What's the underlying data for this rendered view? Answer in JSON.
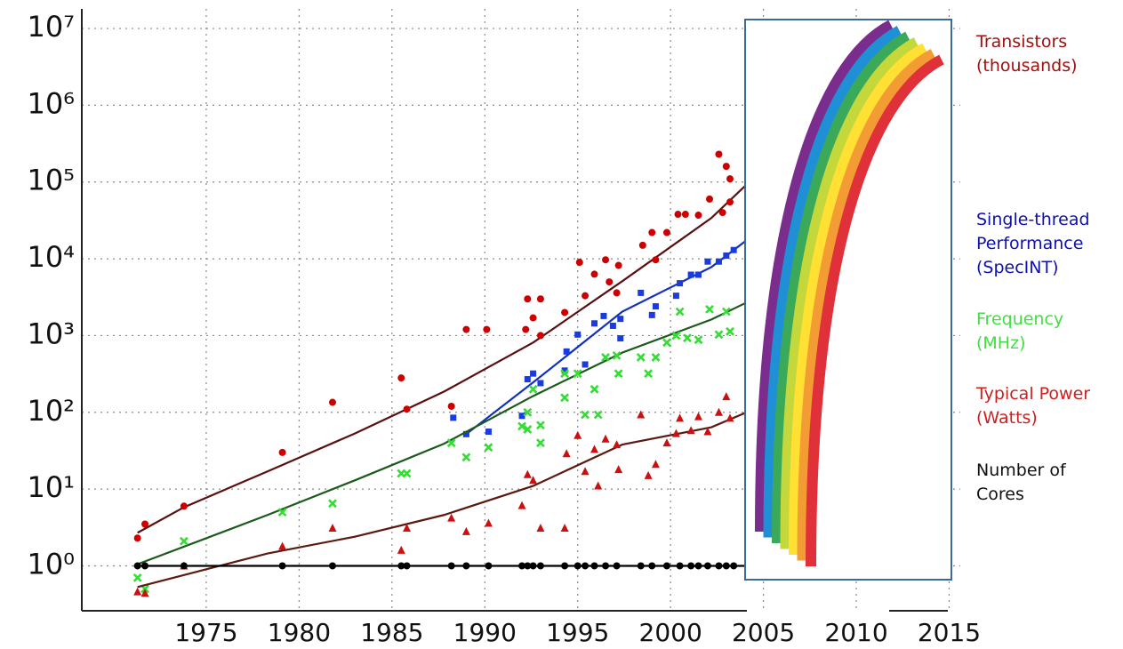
{
  "chart_data": {
    "type": "scatter",
    "ylog": true,
    "grid": true,
    "xlim": [
      1968.3,
      2015.6
    ],
    "ylim": [
      0.26,
      18000000
    ],
    "xticks": [
      1975,
      1980,
      1985,
      1990,
      1995,
      2000,
      2005,
      2010,
      2015
    ],
    "yticks": [
      {
        "value": 1,
        "label": "10⁰"
      },
      {
        "value": 10,
        "label": "10¹"
      },
      {
        "value": 100,
        "label": "10²"
      },
      {
        "value": 1000,
        "label": "10³"
      },
      {
        "value": 10000,
        "label": "10⁴"
      },
      {
        "value": 100000,
        "label": "10⁵"
      },
      {
        "value": 1000000,
        "label": "10⁶"
      },
      {
        "value": 10000000,
        "label": "10⁷"
      }
    ],
    "series": [
      {
        "name": "Transistors (thousands)",
        "color": "#cc0000",
        "label_color": "#a01010",
        "line_color": "#5a1010",
        "marker": "circle",
        "x": [
          1971.3,
          1971.7,
          1973.8,
          1979.1,
          1981.8,
          1985.5,
          1985.8,
          1988.2,
          1989.0,
          1990.1,
          1992.2,
          1992.3,
          1993.0,
          1992.6,
          1993.0,
          1994.3,
          1995.1,
          1995.4,
          1995.9,
          1996.5,
          1996.7,
          1997.2,
          1997.1,
          1998.5,
          1999.0,
          1999.2,
          1999.8,
          2000.4,
          2000.8,
          2001.5,
          2002.1,
          2002.6,
          2003.0,
          2003.2,
          2002.8,
          2003.2
        ],
        "values": [
          2.3,
          3.5,
          6,
          30,
          135,
          280,
          110,
          120,
          1200,
          1200,
          1200,
          3000,
          3000,
          1700,
          1000,
          2000,
          9000,
          3300,
          6300,
          9700,
          5000,
          8200,
          3600,
          15000,
          22000,
          9700,
          22000,
          38000,
          38000,
          37000,
          60000,
          230000,
          160000,
          110000,
          40000,
          55000
        ],
        "trend": {
          "x": [
            1971.3,
            1973.8,
            1978.3,
            1983.0,
            1987.8,
            1992.6,
            1997.4,
            2002.2,
            2004.1
          ],
          "values": [
            2.7,
            5.8,
            17,
            53,
            186,
            810,
            5100,
            34000,
            93000
          ]
        }
      },
      {
        "name": "Single-thread Performance (SpecINT)",
        "color": "#1a3cdc",
        "label_color": "#1010b0",
        "line_color": "#1030c0",
        "marker": "square",
        "x": [
          1988.3,
          1989.0,
          1990.2,
          1992.0,
          1992.3,
          1992.6,
          1993.0,
          1994.3,
          1994.4,
          1995.0,
          1995.4,
          1995.9,
          1996.4,
          1996.9,
          1997.3,
          1997.3,
          1998.4,
          1999.2,
          1999.0,
          2000.3,
          2000.5,
          2001.1,
          2001.5,
          2002.0,
          2002.6,
          2003.0,
          2003.4
        ],
        "values": [
          85,
          52,
          56,
          90,
          270,
          320,
          240,
          350,
          620,
          1030,
          420,
          1440,
          1800,
          1340,
          1650,
          920,
          3600,
          2400,
          1850,
          3300,
          4800,
          6200,
          6200,
          9200,
          9200,
          11000,
          13000
        ],
        "trend": {
          "x": [
            1989.0,
            1992.6,
            1997.4,
            2002.2,
            2004.1
          ],
          "values": [
            52,
            245,
            2050,
            7800,
            17500
          ]
        }
      },
      {
        "name": "Frequency (MHz)",
        "color": "#33dd33",
        "label_color": "#44dd44",
        "line_color": "#1a5a1a",
        "marker": "x",
        "x": [
          1971.3,
          1971.7,
          1973.8,
          1979.1,
          1981.8,
          1985.5,
          1985.8,
          1988.2,
          1989.0,
          1990.2,
          1992.0,
          1992.3,
          1992.3,
          1992.6,
          1993.0,
          1993.0,
          1994.3,
          1994.3,
          1995.0,
          1995.4,
          1995.9,
          1996.1,
          1996.5,
          1997.1,
          1997.2,
          1998.4,
          1998.8,
          1999.2,
          1999.8,
          2000.5,
          2000.3,
          2000.9,
          2001.5,
          2002.1,
          2002.6,
          2003.0,
          2003.2
        ],
        "values": [
          0.7,
          0.5,
          2.1,
          5,
          6.5,
          16,
          16,
          40,
          26,
          35,
          66,
          60,
          100,
          200,
          68,
          40,
          155,
          320,
          320,
          93,
          200,
          93,
          520,
          550,
          320,
          520,
          320,
          520,
          810,
          2050,
          1000,
          930,
          880,
          2200,
          1030,
          2050,
          1130
        ],
        "trend": {
          "x": [
            1971.3,
            1978.3,
            1983.0,
            1987.8,
            1992.6,
            1997.4,
            2002.2,
            2004.1
          ],
          "values": [
            1.05,
            4.6,
            13,
            39,
            163,
            600,
            1620,
            2700
          ]
        }
      },
      {
        "name": "Typical Power (Watts)",
        "color": "#cc1010",
        "label_color": "#cc2020",
        "line_color": "#5a1a10",
        "marker": "triangle",
        "x": [
          1971.3,
          1971.7,
          1973.8,
          1979.1,
          1981.8,
          1985.5,
          1985.8,
          1988.2,
          1989.0,
          1990.2,
          1992.0,
          1992.3,
          1992.6,
          1993.0,
          1994.3,
          1994.4,
          1995.0,
          1995.4,
          1995.9,
          1996.1,
          1996.5,
          1997.1,
          1997.2,
          1998.4,
          1998.8,
          1999.2,
          1999.8,
          2000.5,
          2000.3,
          2001.1,
          2001.5,
          2002.0,
          2002.6,
          2003.0,
          2003.2
        ],
        "values": [
          0.46,
          0.44,
          1.0,
          1.8,
          3.1,
          1.6,
          3.1,
          4.2,
          2.8,
          3.6,
          6.1,
          15.5,
          13,
          3.1,
          3.1,
          29,
          50,
          17,
          33,
          11,
          45,
          38,
          18,
          93,
          15,
          21,
          40,
          84,
          53,
          58,
          88,
          56,
          100,
          160,
          84
        ],
        "trend": {
          "x": [
            1971.3,
            1978.3,
            1983.0,
            1987.8,
            1992.6,
            1997.4,
            2002.2,
            2004.1
          ],
          "values": [
            0.53,
            1.45,
            2.4,
            4.6,
            11,
            38,
            64,
            100
          ]
        }
      },
      {
        "name": "Number of Cores",
        "color": "#000000",
        "label_color": "#111111",
        "line_color": "#000000",
        "marker": "circle",
        "x": [
          1971.3,
          1971.7,
          1973.8,
          1979.1,
          1981.8,
          1985.5,
          1985.8,
          1988.2,
          1989.0,
          1990.2,
          1992.0,
          1992.3,
          1992.6,
          1993.0,
          1994.3,
          1995.0,
          1995.4,
          1995.9,
          1996.5,
          1997.1,
          1998.4,
          1999.0,
          1999.8,
          2000.5,
          2001.1,
          2001.5,
          2002.0,
          2002.6,
          2003.0,
          2003.4
        ],
        "values": [
          1,
          1,
          1,
          1,
          1,
          1,
          1,
          1,
          1,
          1,
          1,
          1,
          1,
          1,
          1,
          1,
          1,
          1,
          1,
          1,
          1,
          1,
          1,
          1,
          1,
          1,
          1,
          1,
          1,
          1
        ],
        "trend": {
          "x": [
            1971.1,
            2004.1
          ],
          "values": [
            1,
            1
          ]
        }
      }
    ]
  }
}
